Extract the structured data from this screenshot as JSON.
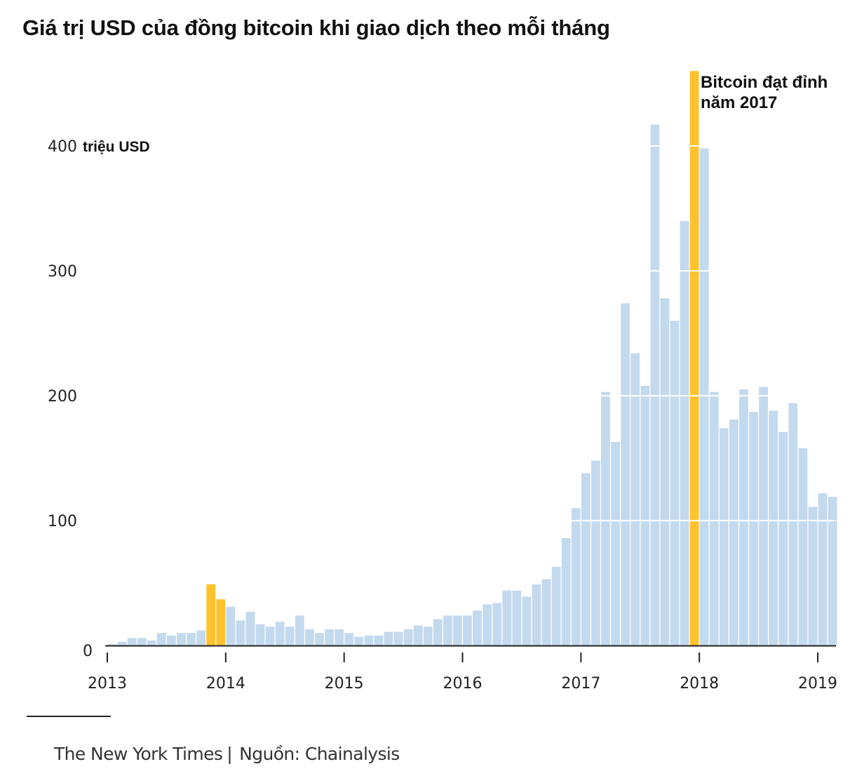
{
  "chart_data": {
    "type": "bar",
    "title": "Giá trị USD của đồng bitcoin khi giao dịch theo mỗi tháng",
    "ylabel_unit": "triệu USD",
    "ylim": [
      0,
      470
    ],
    "yticks": [
      0,
      100,
      200,
      300,
      400
    ],
    "ytick_labels": [
      "0",
      "100",
      "200",
      "300",
      "400"
    ],
    "year_labels": [
      "2013",
      "2014",
      "2015",
      "2016",
      "2017",
      "2018",
      "2019"
    ],
    "start": "2013-01",
    "highlight_color": "#ffc22e",
    "base_color": "#c3d9ee",
    "highlight_indices": [
      10,
      11,
      59
    ],
    "annotation": {
      "lines": [
        "Bitcoin đạt đỉnh",
        "năm 2017"
      ],
      "bar_index": 59
    },
    "values": [
      1,
      3,
      6,
      6,
      4,
      10,
      8,
      10,
      10,
      12,
      49,
      37,
      31,
      20,
      27,
      17,
      15,
      19,
      15,
      24,
      13,
      10,
      13,
      13,
      10,
      7,
      8,
      8,
      11,
      11,
      13,
      16,
      15,
      21,
      24,
      24,
      24,
      28,
      33,
      34,
      44,
      44,
      39,
      49,
      53,
      63,
      86,
      110,
      138,
      148,
      203,
      163,
      274,
      234,
      208,
      417,
      278,
      260,
      340,
      460,
      398,
      203,
      174,
      181,
      205,
      187,
      207,
      188,
      171,
      194,
      158,
      111,
      122,
      119
    ]
  },
  "footer": {
    "publisher": "The New York Times",
    "separator": "|",
    "source": "Nguồn: Chainalysis"
  }
}
